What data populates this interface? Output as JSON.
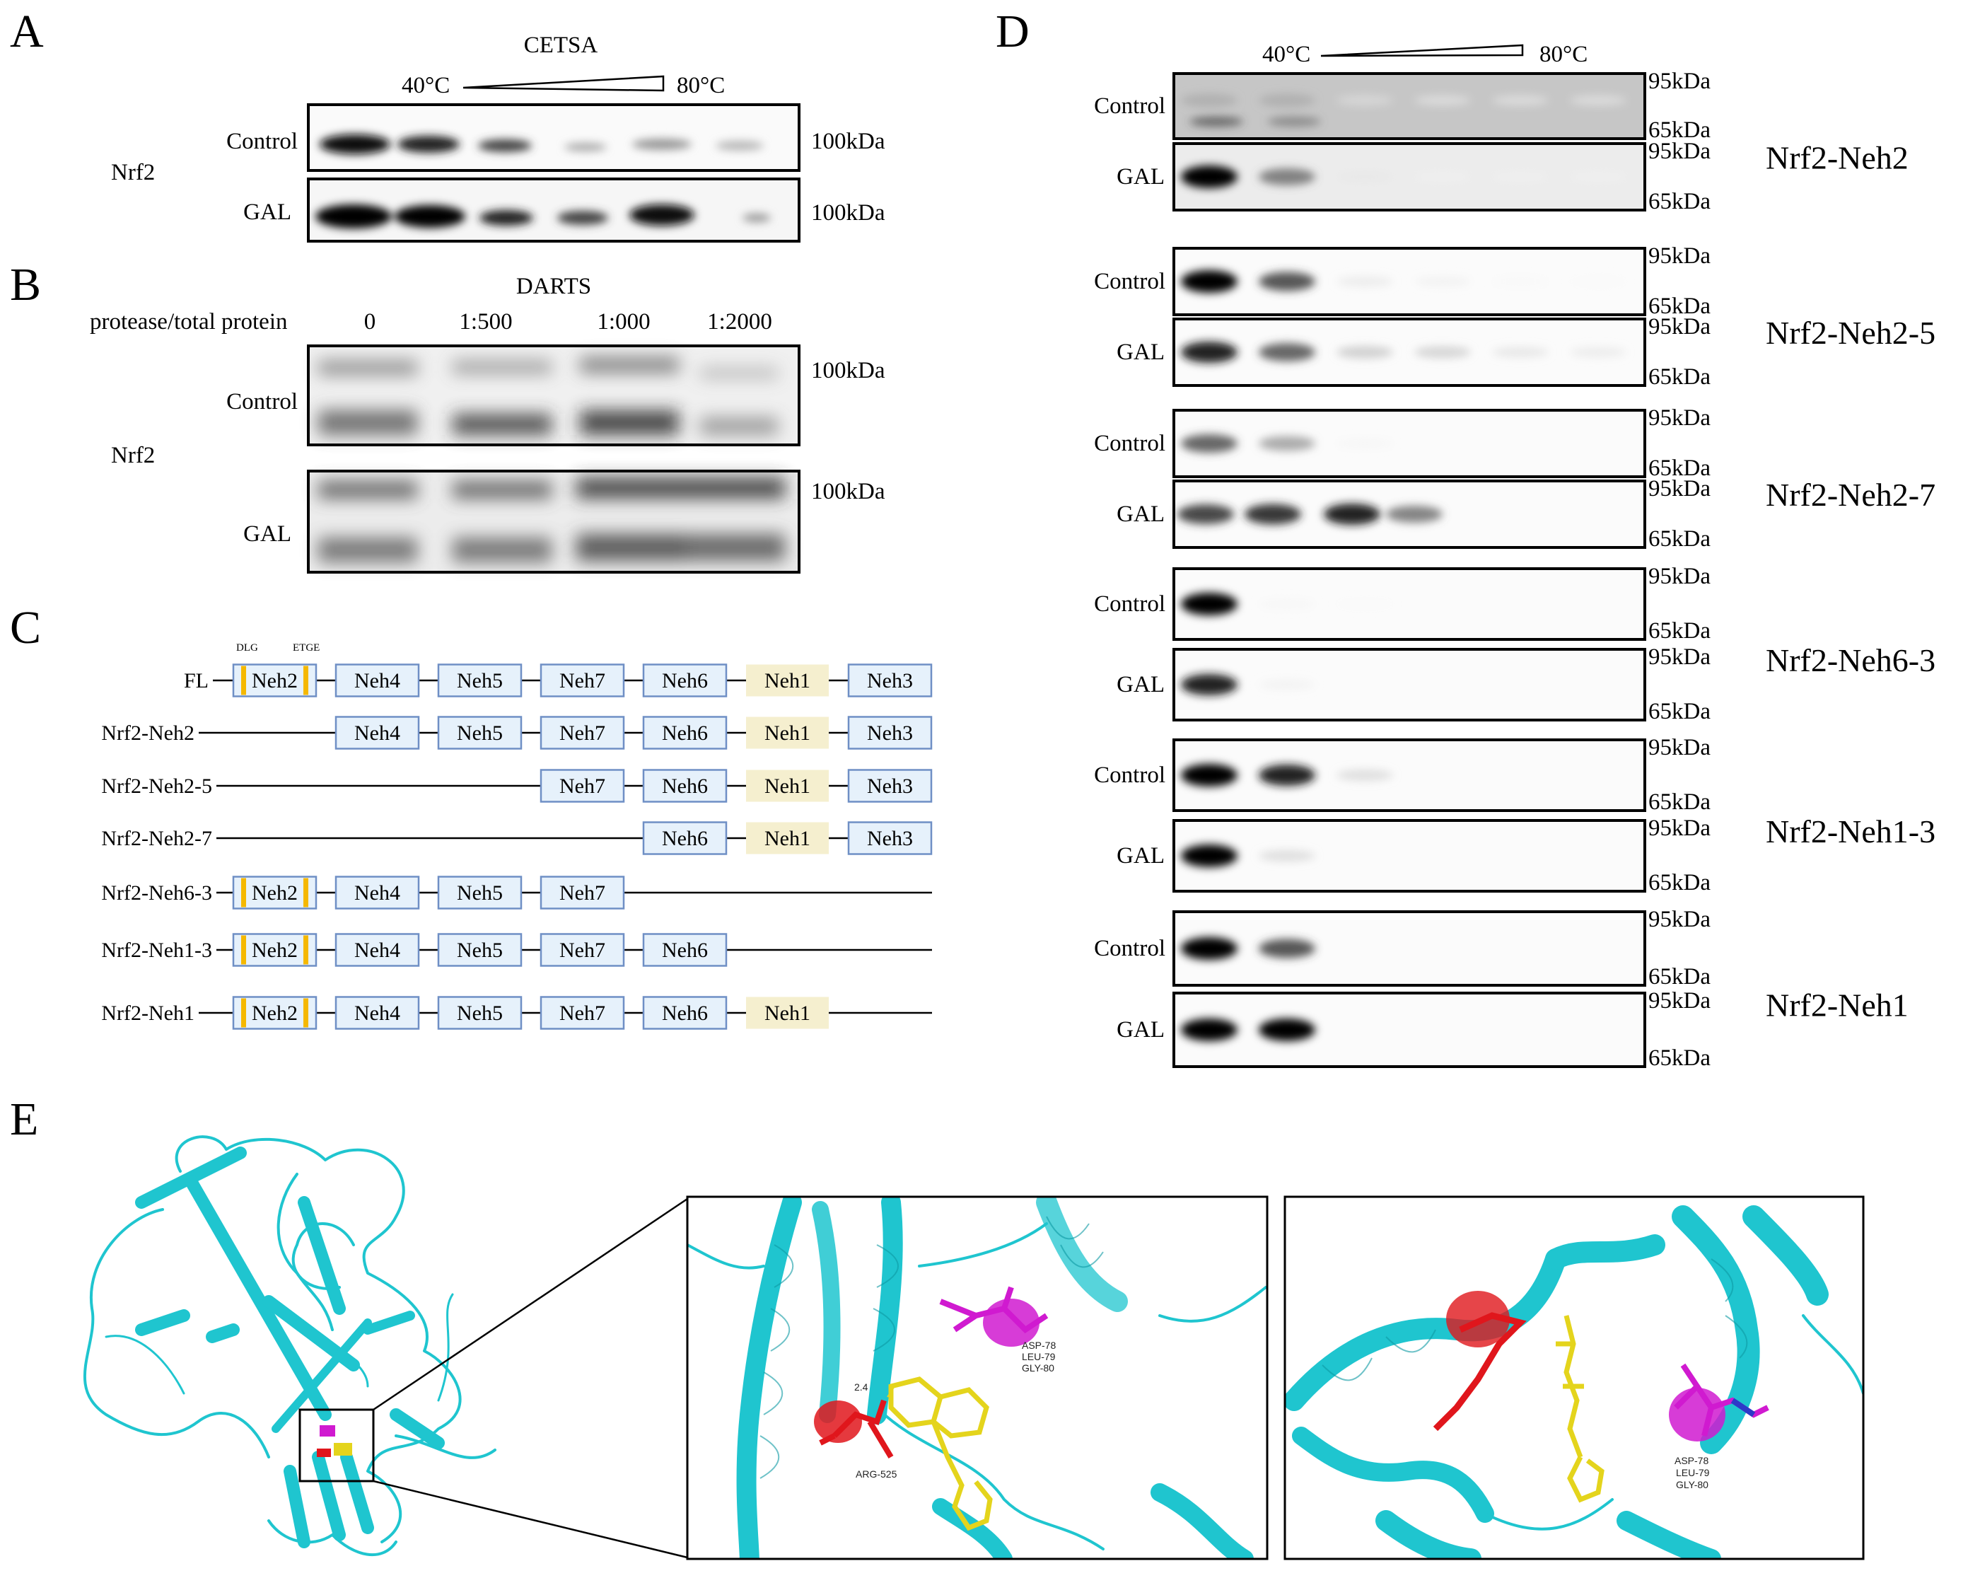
{
  "panels": {
    "A": {
      "letter": "A",
      "assay": "CETSA",
      "temp_start": "40°C",
      "temp_end": "80°C",
      "protein": "Nrf2",
      "rows": [
        {
          "label": "Control",
          "marker": "100kDa"
        },
        {
          "label": "GAL",
          "marker": "100kDa"
        }
      ]
    },
    "B": {
      "letter": "B",
      "assay": "DARTS",
      "ratio_label": "protease/total protein",
      "ratios": [
        "0",
        "1:500",
        "1:000",
        "1:2000"
      ],
      "protein": "Nrf2",
      "rows": [
        {
          "label": "Control",
          "marker": "100kDa"
        },
        {
          "label": "GAL",
          "marker": "100kDa"
        }
      ]
    },
    "C": {
      "letter": "C",
      "motifs": [
        "DLG",
        "ETGE"
      ],
      "constructs": [
        {
          "name": "FL",
          "domains": [
            "Neh2",
            "Neh4",
            "Neh5",
            "Neh7",
            "Neh6",
            "Neh1",
            "Neh3"
          ]
        },
        {
          "name": "Nrf2-Neh2",
          "domains": [
            "Neh4",
            "Neh5",
            "Neh7",
            "Neh6",
            "Neh1",
            "Neh3"
          ]
        },
        {
          "name": "Nrf2-Neh2-5",
          "domains": [
            "Neh7",
            "Neh6",
            "Neh1",
            "Neh3"
          ]
        },
        {
          "name": "Nrf2-Neh2-7",
          "domains": [
            "Neh6",
            "Neh1",
            "Neh3"
          ]
        },
        {
          "name": "Nrf2-Neh6-3",
          "domains": [
            "Neh2",
            "Neh4",
            "Neh5",
            "Neh7"
          ]
        },
        {
          "name": "Nrf2-Neh1-3",
          "domains": [
            "Neh2",
            "Neh4",
            "Neh5",
            "Neh7",
            "Neh6"
          ]
        },
        {
          "name": "Nrf2-Neh1",
          "domains": [
            "Neh2",
            "Neh4",
            "Neh5",
            "Neh7",
            "Neh6",
            "Neh1"
          ]
        }
      ]
    },
    "D": {
      "letter": "D",
      "temp_start": "40°C",
      "temp_end": "80°C",
      "marker_high": "95kDa",
      "marker_low": "65kDa",
      "control_label": "Control",
      "gal_label": "GAL",
      "constructs": [
        "Nrf2-Neh2",
        "Nrf2-Neh2-5",
        "Nrf2-Neh2-7",
        "Nrf2-Neh6-3",
        "Nrf2-Neh1-3",
        "Nrf2-Neh1"
      ]
    },
    "E": {
      "letter": "E",
      "residues_a": [
        "ASP-78",
        "LEU-79",
        "GLY-80"
      ],
      "residue_b": "ARG-525",
      "distance": "2.4",
      "residues_c": [
        "ASP-78",
        "LEU-79",
        "GLY-80"
      ]
    }
  },
  "colors": {
    "protein": "#1fc5cf",
    "ligand": "#e4d41c",
    "arg": "#e0161c",
    "asp": "#d01ad0",
    "domain_fill": "#e6f1fb",
    "neh1_fill": "#f5efcf",
    "motif": "#f5b800"
  }
}
